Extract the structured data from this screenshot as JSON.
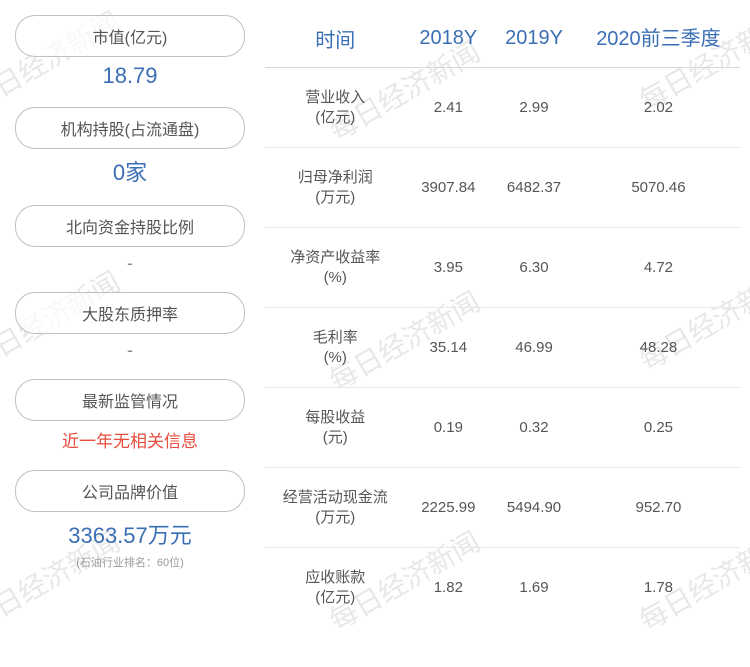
{
  "watermark_text": "每日经济新闻",
  "watermark_color": "#e8e8e8",
  "accent_color": "#3b6fb5",
  "red_color": "#e74c3c",
  "left_cards": [
    {
      "label": "市值(亿元)",
      "value": "18.79",
      "style": "blue"
    },
    {
      "label": "机构持股(占流通盘)",
      "value": "0家",
      "style": "blue"
    },
    {
      "label": "北向资金持股比例",
      "value": "-",
      "style": "dash"
    },
    {
      "label": "大股东质押率",
      "value": "-",
      "style": "dash"
    },
    {
      "label": "最新监管情况",
      "value": "近一年无相关信息",
      "style": "red"
    },
    {
      "label": "公司品牌价值",
      "value": "3363.57万元",
      "sub": "(石油行业排名：60位)",
      "style": "blue"
    }
  ],
  "table": {
    "columns": [
      "时间",
      "2018Y",
      "2019Y",
      "2020前三季度"
    ],
    "rows": [
      {
        "metric": "营业收入",
        "unit": "(亿元)",
        "c1": "2.41",
        "c2": "2.99",
        "c3": "2.02"
      },
      {
        "metric": "归母净利润",
        "unit": "(万元)",
        "c1": "3907.84",
        "c2": "6482.37",
        "c3": "5070.46"
      },
      {
        "metric": "净资产收益率",
        "unit": "(%)",
        "c1": "3.95",
        "c2": "6.30",
        "c3": "4.72"
      },
      {
        "metric": "毛利率",
        "unit": "(%)",
        "c1": "35.14",
        "c2": "46.99",
        "c3": "48.28"
      },
      {
        "metric": "每股收益",
        "unit": "(元)",
        "c1": "0.19",
        "c2": "0.32",
        "c3": "0.25"
      },
      {
        "metric": "经营活动现金流",
        "unit": "(万元)",
        "c1": "2225.99",
        "c2": "5494.90",
        "c3": "952.70"
      },
      {
        "metric": "应收账款",
        "unit": "(亿元)",
        "c1": "1.82",
        "c2": "1.69",
        "c3": "1.78"
      }
    ]
  }
}
